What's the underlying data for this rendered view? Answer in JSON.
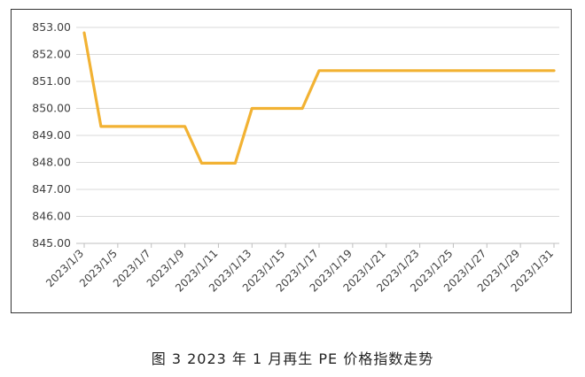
{
  "caption": "图 3  2023 年 1 月再生 PE 价格指数走势",
  "colors": {
    "line": "#F2B233",
    "grid": "#D9D9D9",
    "axis": "#BFBFBF",
    "text": "#404040"
  },
  "chart_data": {
    "type": "line",
    "ylim": [
      845.0,
      853.0
    ],
    "y_ticks": [
      "845.00",
      "846.00",
      "847.00",
      "848.00",
      "849.00",
      "850.00",
      "851.00",
      "852.00",
      "853.00"
    ],
    "x_tick_labels": [
      "2023/1/3",
      "2023/1/5",
      "2023/1/7",
      "2023/1/9",
      "2023/1/11",
      "2023/1/13",
      "2023/1/15",
      "2023/1/17",
      "2023/1/19",
      "2023/1/21",
      "2023/1/23",
      "2023/1/25",
      "2023/1/27",
      "2023/1/29",
      "2023/1/31"
    ],
    "grid": "horizontal",
    "series": [
      {
        "x": [
          "2023/1/3",
          "2023/1/4",
          "2023/1/5",
          "2023/1/6",
          "2023/1/9",
          "2023/1/10",
          "2023/1/11",
          "2023/1/12",
          "2023/1/13",
          "2023/1/16",
          "2023/1/17",
          "2023/1/18",
          "2023/1/19",
          "2023/1/20",
          "2023/1/30",
          "2023/1/31"
        ],
        "values": [
          852.8,
          849.33,
          849.33,
          849.33,
          849.33,
          847.97,
          847.97,
          847.97,
          850.0,
          850.0,
          851.4,
          851.4,
          851.4,
          851.4,
          851.4,
          851.4
        ]
      }
    ]
  }
}
